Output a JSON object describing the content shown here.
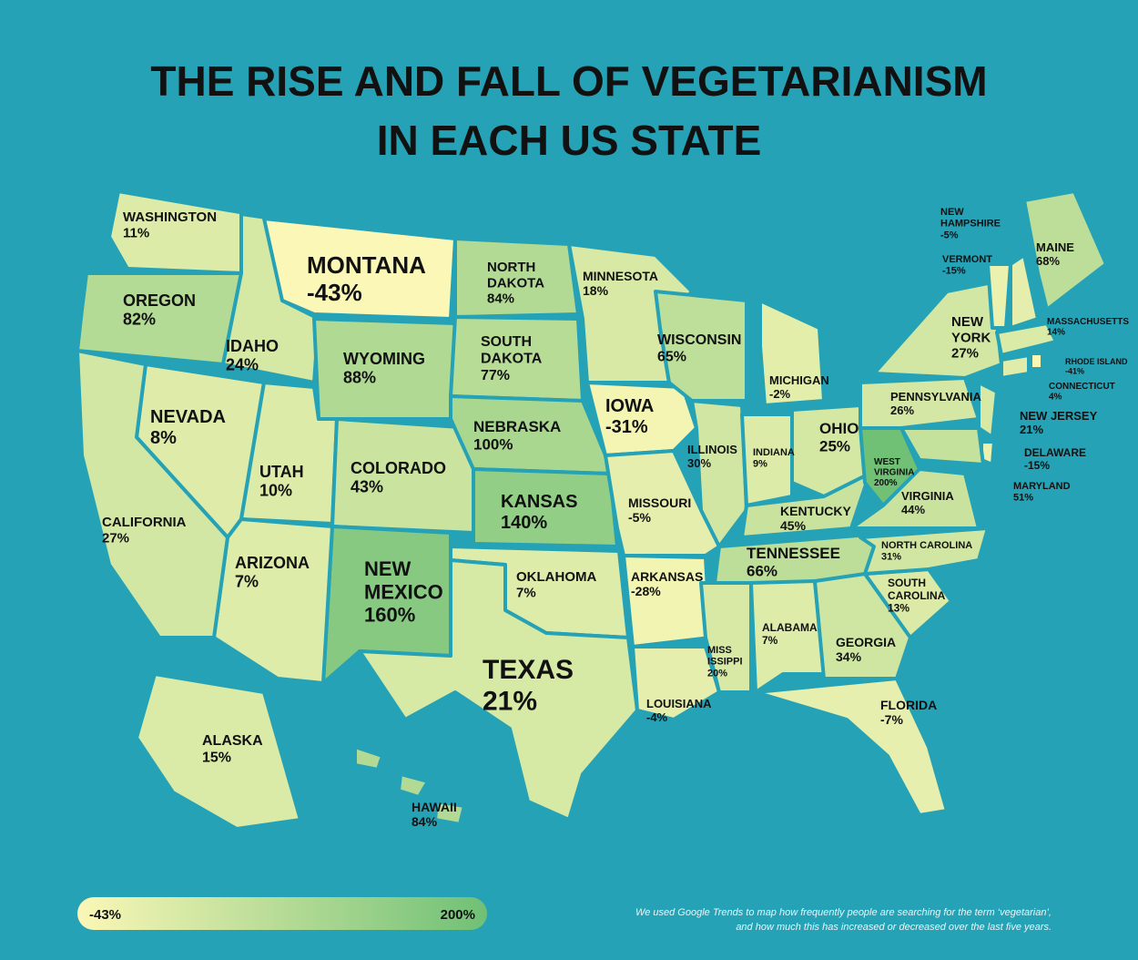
{
  "header": {
    "title_lines": [
      "THE RISE AND FALL OF VEGETARIANISM",
      "IN EACH US STATE"
    ]
  },
  "states": [
    {
      "name_lines": [
        "WASHINGTON"
      ],
      "value": 11,
      "label": "11%"
    },
    {
      "name_lines": [
        "OREGON"
      ],
      "value": 82,
      "label": "82%"
    },
    {
      "name_lines": [
        "IDAHO"
      ],
      "value": 24,
      "label": "24%"
    },
    {
      "name_lines": [
        "MONTANA"
      ],
      "value": -43,
      "label": "-43%"
    },
    {
      "name_lines": [
        "NEVADA"
      ],
      "value": 8,
      "label": "8%"
    },
    {
      "name_lines": [
        "UTAH"
      ],
      "value": 10,
      "label": "10%"
    },
    {
      "name_lines": [
        "WYOMING"
      ],
      "value": 88,
      "label": "88%"
    },
    {
      "name_lines": [
        "COLORADO"
      ],
      "value": 43,
      "label": "43%"
    },
    {
      "name_lines": [
        "NORTH",
        "DAKOTA"
      ],
      "value": 84,
      "label": "84%"
    },
    {
      "name_lines": [
        "SOUTH",
        "DAKOTA"
      ],
      "value": 77,
      "label": "77%"
    },
    {
      "name_lines": [
        "NEBRASKA"
      ],
      "value": 100,
      "label": "100%"
    },
    {
      "name_lines": [
        "KANSAS"
      ],
      "value": 140,
      "label": "140%"
    },
    {
      "name_lines": [
        "NEW",
        "MEXICO"
      ],
      "value": 160,
      "label": "160%"
    },
    {
      "name_lines": [
        "ARIZONA"
      ],
      "value": 7,
      "label": "7%"
    },
    {
      "name_lines": [
        "CALIFORNIA"
      ],
      "value": 27,
      "label": "27%"
    },
    {
      "name_lines": [
        "OKLAHOMA"
      ],
      "value": 7,
      "label": "7%"
    },
    {
      "name_lines": [
        "TEXAS"
      ],
      "value": 21,
      "label": "21%"
    },
    {
      "name_lines": [
        "MINNESOTA"
      ],
      "value": 18,
      "label": "18%"
    },
    {
      "name_lines": [
        "IOWA"
      ],
      "value": -31,
      "label": "-31%"
    },
    {
      "name_lines": [
        "MISSOURI"
      ],
      "value": -5,
      "label": "-5%"
    },
    {
      "name_lines": [
        "ARKANSAS"
      ],
      "value": -28,
      "label": "-28%"
    },
    {
      "name_lines": [
        "LOUISIANA"
      ],
      "value": -4,
      "label": "-4%"
    },
    {
      "name_lines": [
        "WISCONSIN"
      ],
      "value": 65,
      "label": "65%"
    },
    {
      "name_lines": [
        "ILLINOIS"
      ],
      "value": 30,
      "label": "30%"
    },
    {
      "name_lines": [
        "MICHIGAN"
      ],
      "value": -2,
      "label": "-2%"
    },
    {
      "name_lines": [
        "INDIANA"
      ],
      "value": 9,
      "label": "9%"
    },
    {
      "name_lines": [
        "OHIO"
      ],
      "value": 25,
      "label": "25%"
    },
    {
      "name_lines": [
        "KENTUCKY"
      ],
      "value": 45,
      "label": "45%"
    },
    {
      "name_lines": [
        "TENNESSEE"
      ],
      "value": 66,
      "label": "66%"
    },
    {
      "name_lines": [
        "MISS",
        "ISSIPPI"
      ],
      "value": 20,
      "label": "20%"
    },
    {
      "name_lines": [
        "ALABAMA"
      ],
      "value": 7,
      "label": "7%"
    },
    {
      "name_lines": [
        "GEORGIA"
      ],
      "value": 34,
      "label": "34%"
    },
    {
      "name_lines": [
        "FLORIDA"
      ],
      "value": -7,
      "label": "-7%"
    },
    {
      "name_lines": [
        "SOUTH",
        "CAROLINA"
      ],
      "value": 13,
      "label": "13%"
    },
    {
      "name_lines": [
        "NORTH CAROLINA"
      ],
      "value": 31,
      "label": "31%"
    },
    {
      "name_lines": [
        "VIRGINIA"
      ],
      "value": 44,
      "label": "44%"
    },
    {
      "name_lines": [
        "WEST",
        "VIRGINIA"
      ],
      "value": 200,
      "label": "200%"
    },
    {
      "name_lines": [
        "PENNSYLVANIA"
      ],
      "value": 26,
      "label": "26%"
    },
    {
      "name_lines": [
        "NEW",
        "YORK"
      ],
      "value": 27,
      "label": "27%"
    },
    {
      "name_lines": [
        "NEW JERSEY"
      ],
      "value": 21,
      "label": "21%"
    },
    {
      "name_lines": [
        "DELAWARE"
      ],
      "value": -15,
      "label": "-15%"
    },
    {
      "name_lines": [
        "MARYLAND"
      ],
      "value": 51,
      "label": "51%"
    },
    {
      "name_lines": [
        "CONNECTICUT"
      ],
      "value": 4,
      "label": "4%"
    },
    {
      "name_lines": [
        "RHODE ISLAND"
      ],
      "value": -41,
      "label": "-41%"
    },
    {
      "name_lines": [
        "MASSACHUSETTS"
      ],
      "value": 14,
      "label": "14%"
    },
    {
      "name_lines": [
        "VERMONT"
      ],
      "value": -15,
      "label": "-15%"
    },
    {
      "name_lines": [
        "NEW",
        "HAMPSHIRE"
      ],
      "value": -5,
      "label": "-5%"
    },
    {
      "name_lines": [
        "MAINE"
      ],
      "value": 68,
      "label": "68%"
    },
    {
      "name_lines": [
        "ALASKA"
      ],
      "value": 15,
      "label": "15%"
    },
    {
      "name_lines": [
        "HAWAII"
      ],
      "value": 84,
      "label": "84%"
    }
  ],
  "legend": {
    "min": -43,
    "max": 200,
    "min_label": "-43%",
    "max_label": "200%"
  },
  "footnote_lines": [
    "We used Google Trends to map how frequently people are searching for the term ‘vegetarian’,",
    "and how much this has increased or decreased over the last five years."
  ]
}
